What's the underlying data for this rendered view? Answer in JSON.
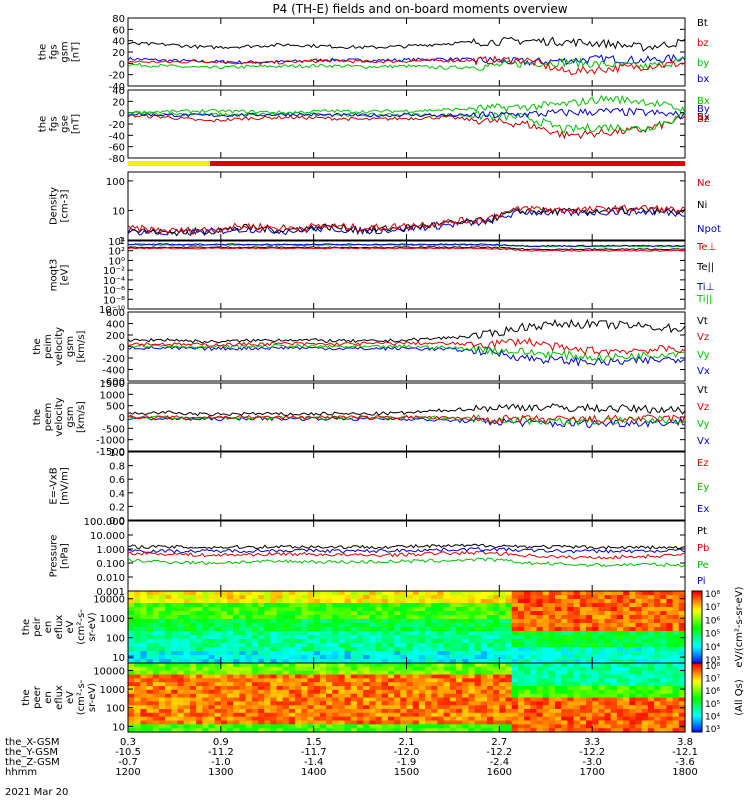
{
  "title": "P4 (TH-E) fields and on-board moments overview",
  "chart_data": [
    {
      "type": "line",
      "ylabel": [
        "the",
        "fgs",
        "gsm",
        "[nT]"
      ],
      "ylim": [
        -40,
        80
      ],
      "ticks": [
        "80",
        "60",
        "40",
        "20",
        "0",
        "-20",
        "-40"
      ],
      "tick_values": [
        80,
        60,
        40,
        20,
        0,
        -20,
        -40
      ],
      "legend": [
        {
          "label": "Bt",
          "color": "#000000"
        },
        {
          "label": "bz",
          "color": "#e00000"
        },
        {
          "label": "by",
          "color": "#00c000"
        },
        {
          "label": "bx",
          "color": "#0000d0"
        }
      ],
      "series": [
        {
          "name": "Bt",
          "values": [
            35,
            33,
            28,
            30,
            33,
            30,
            28,
            30,
            35,
            38,
            40,
            38,
            35,
            28,
            38
          ]
        },
        {
          "name": "bz",
          "values": [
            3,
            2,
            4,
            0,
            2,
            5,
            3,
            4,
            5,
            5,
            6,
            -15,
            -10,
            -5,
            0
          ]
        },
        {
          "name": "by",
          "values": [
            -2,
            -5,
            -8,
            -6,
            -5,
            -4,
            -6,
            -5,
            -8,
            -5,
            0,
            2,
            -2,
            -6,
            5
          ]
        },
        {
          "name": "bx",
          "values": [
            8,
            5,
            3,
            2,
            3,
            6,
            5,
            6,
            8,
            5,
            2,
            5,
            8,
            5,
            10
          ]
        }
      ]
    },
    {
      "type": "line",
      "ylabel": [
        "the",
        "fgs",
        "gse",
        "[nT]"
      ],
      "ylim": [
        -80,
        40
      ],
      "ticks": [
        "40",
        "20",
        "0",
        "-20",
        "-40",
        "-60",
        "-80"
      ],
      "tick_values": [
        40,
        20,
        0,
        -20,
        -40,
        -60,
        -80
      ],
      "legend": [
        {
          "label": "Bx",
          "color": "#00c000"
        },
        {
          "label": "By",
          "color": "#0000d0"
        },
        {
          "label": "Bx",
          "color": "#000000"
        },
        {
          "label": "Bz",
          "color": "#c00000"
        }
      ],
      "series": [
        {
          "name": "Bx",
          "values": [
            0,
            2,
            3,
            2,
            0,
            3,
            2,
            3,
            5,
            8,
            10,
            15,
            25,
            20,
            5
          ]
        },
        {
          "name": "By",
          "values": [
            -2,
            -4,
            -5,
            -4,
            -3,
            -4,
            -5,
            -4,
            -5,
            -5,
            -3,
            0,
            2,
            0,
            -5
          ]
        },
        {
          "name": "Bx",
          "values": [
            0,
            -2,
            -3,
            -4,
            -2,
            -3,
            -4,
            -3,
            -4,
            -6,
            -8,
            -30,
            -25,
            -28,
            -5
          ]
        },
        {
          "name": "Bz",
          "values": [
            -5,
            -8,
            -15,
            -10,
            -8,
            -10,
            -12,
            -10,
            -8,
            -15,
            -20,
            -40,
            -35,
            -30,
            -10
          ]
        }
      ]
    },
    {
      "type": "line",
      "ylabel": [
        "Density",
        "[cm-3]"
      ],
      "yscale": "log",
      "ylim": [
        1,
        200
      ],
      "ticks": [
        "100",
        "10",
        "1"
      ],
      "tick_values": [
        100,
        10,
        1
      ],
      "legend": [
        {
          "label": "Ne",
          "color": "#e00000"
        },
        {
          "label": "Ni",
          "color": "#000000"
        },
        {
          "label": "Npot",
          "color": "#0000d0"
        }
      ],
      "series": [
        {
          "name": "Ne",
          "values": [
            2.5,
            2.0,
            2.2,
            3,
            2.5,
            3,
            2.5,
            3,
            4,
            5,
            12,
            10,
            11,
            12,
            10
          ]
        },
        {
          "name": "Ni",
          "values": [
            2.2,
            1.8,
            2.0,
            2.6,
            2.2,
            2.8,
            2.2,
            2.6,
            3.5,
            4.5,
            10,
            9,
            10,
            10,
            9
          ]
        },
        {
          "name": "Npot",
          "values": [
            2.0,
            1.7,
            1.9,
            2.4,
            2.0,
            2.5,
            2.0,
            2.4,
            3.2,
            4,
            9,
            8,
            9,
            9,
            8
          ]
        }
      ]
    },
    {
      "type": "line",
      "ylabel": [
        "moqt3",
        "[eV]"
      ],
      "yscale": "log",
      "ylim": [
        1e-10,
        10000
      ],
      "ticks": [
        "10⁴",
        "10²",
        "10⁰",
        "10⁻²",
        "10⁻⁴",
        "10⁻⁶",
        "10⁻⁸",
        "10⁻¹⁰"
      ],
      "tick_values": [
        10000,
        100,
        1,
        0.01,
        0.0001,
        1e-06,
        1e-08,
        1e-10
      ],
      "legend": [
        {
          "label": "Te⊥",
          "color": "#e00000"
        },
        {
          "label": "Te||",
          "color": "#000000"
        },
        {
          "label": "Ti⊥",
          "color": "#0000d0"
        },
        {
          "label": "Ti||",
          "color": "#00c000"
        }
      ],
      "series": [
        {
          "name": "Te⊥",
          "values": [
            300,
            300,
            300,
            300,
            300,
            300,
            300,
            300,
            300,
            300,
            100,
            100,
            100,
            100,
            100
          ]
        },
        {
          "name": "Te||",
          "values": [
            500,
            500,
            500,
            500,
            500,
            500,
            500,
            500,
            500,
            500,
            200,
            200,
            200,
            200,
            200
          ]
        },
        {
          "name": "Ti⊥",
          "values": [
            2000,
            2000,
            2000,
            2000,
            2000,
            2000,
            2000,
            2000,
            2000,
            2000,
            1000,
            1000,
            1000,
            1000,
            1000
          ]
        },
        {
          "name": "Ti||",
          "values": [
            1500,
            1500,
            1500,
            1500,
            1500,
            1500,
            1500,
            1500,
            1500,
            1500,
            800,
            800,
            800,
            800,
            800
          ]
        }
      ]
    },
    {
      "type": "line",
      "ylabel": [
        "the",
        "peim",
        "velocity",
        "gsm",
        "[km/s]"
      ],
      "ylim": [
        -600,
        600
      ],
      "ticks": [
        "600",
        "400",
        "200",
        "0",
        "-200",
        "-400",
        "-600"
      ],
      "tick_values": [
        600,
        400,
        200,
        0,
        -200,
        -400,
        -600
      ],
      "legend": [
        {
          "label": "Vt",
          "color": "#000000"
        },
        {
          "label": "Vz",
          "color": "#e00000"
        },
        {
          "label": "Vy",
          "color": "#00c000"
        },
        {
          "label": "Vx",
          "color": "#0000d0"
        }
      ],
      "series": [
        {
          "name": "Vt",
          "values": [
            100,
            120,
            80,
            100,
            120,
            100,
            90,
            110,
            150,
            200,
            350,
            400,
            380,
            350,
            300
          ]
        },
        {
          "name": "Vz",
          "values": [
            50,
            40,
            30,
            40,
            50,
            40,
            50,
            60,
            50,
            40,
            100,
            -50,
            -80,
            -60,
            -40
          ]
        },
        {
          "name": "Vy",
          "values": [
            20,
            10,
            -10,
            0,
            10,
            0,
            -10,
            0,
            -20,
            -50,
            -100,
            -150,
            -200,
            -150,
            -100
          ]
        },
        {
          "name": "Vx",
          "values": [
            -20,
            -30,
            -40,
            -30,
            -20,
            -30,
            -40,
            -30,
            -50,
            -80,
            -200,
            -250,
            -280,
            -250,
            -200
          ]
        }
      ]
    },
    {
      "type": "line",
      "ylabel": [
        "the",
        "peem",
        "velocity",
        "gsm",
        "[km/s]"
      ],
      "ylim": [
        -1500,
        1500
      ],
      "ticks": [
        "1500",
        "1000",
        "500",
        "0",
        "-500",
        "-1000",
        "-1500"
      ],
      "tick_values": [
        1500,
        1000,
        500,
        0,
        -500,
        -1000,
        -1500
      ],
      "legend": [
        {
          "label": "Vt",
          "color": "#000000"
        },
        {
          "label": "Vz",
          "color": "#e00000"
        },
        {
          "label": "Vy",
          "color": "#00c000"
        },
        {
          "label": "Vx",
          "color": "#0000d0"
        }
      ],
      "series": [
        {
          "name": "Vt",
          "values": [
            150,
            200,
            100,
            150,
            120,
            150,
            130,
            180,
            300,
            400,
            450,
            400,
            380,
            350,
            300
          ]
        },
        {
          "name": "Vz",
          "values": [
            0,
            -20,
            -10,
            0,
            -10,
            0,
            -20,
            0,
            -50,
            -100,
            -100,
            -120,
            -100,
            -80,
            -60
          ]
        },
        {
          "name": "Vy",
          "values": [
            -20,
            -30,
            -40,
            -30,
            -40,
            -30,
            -40,
            -30,
            -50,
            -80,
            -150,
            -200,
            -180,
            -150,
            -120
          ]
        },
        {
          "name": "Vx",
          "values": [
            -50,
            -80,
            -100,
            -60,
            -80,
            -70,
            -90,
            -80,
            -150,
            -200,
            -250,
            -300,
            -280,
            -250,
            -220
          ]
        }
      ]
    },
    {
      "type": "line",
      "ylabel": [
        "E=-VxB",
        "[mV/m]"
      ],
      "ylim": [
        0,
        1
      ],
      "ticks": [
        "1.0",
        "0.8",
        "0.6",
        "0.4",
        "0.2",
        "0.0"
      ],
      "tick_values": [
        1,
        0.8,
        0.6,
        0.4,
        0.2,
        0
      ],
      "legend": [
        {
          "label": "Ez",
          "color": "#e00000"
        },
        {
          "label": "Ey",
          "color": "#00c000"
        },
        {
          "label": "Ex",
          "color": "#0000d0"
        }
      ],
      "series": []
    },
    {
      "type": "line",
      "ylabel": [
        "Pressure",
        "[nPa]"
      ],
      "yscale": "log",
      "ylim": [
        0.001,
        100
      ],
      "ticks": [
        "100.000",
        "10.000",
        "1.000",
        "0.100",
        "0.010",
        "0.001"
      ],
      "tick_values": [
        100,
        10,
        1,
        0.1,
        0.01,
        0.001
      ],
      "legend": [
        {
          "label": "Pt",
          "color": "#000000"
        },
        {
          "label": "Pb",
          "color": "#e00000"
        },
        {
          "label": "Pe",
          "color": "#00c000"
        },
        {
          "label": "Pi",
          "color": "#0000d0"
        }
      ],
      "series": [
        {
          "name": "Pt",
          "values": [
            1.5,
            1.4,
            1.3,
            1.4,
            1.5,
            1.4,
            1.4,
            1.5,
            1.6,
            1.8,
            1.5,
            1.4,
            1.3,
            1.3,
            1.2
          ]
        },
        {
          "name": "Pb",
          "values": [
            0.5,
            0.45,
            0.35,
            0.4,
            0.45,
            0.4,
            0.35,
            0.4,
            0.5,
            0.55,
            0.35,
            0.25,
            0.25,
            0.3,
            0.4
          ]
        },
        {
          "name": "Pe",
          "values": [
            0.15,
            0.12,
            0.1,
            0.12,
            0.13,
            0.12,
            0.12,
            0.13,
            0.15,
            0.18,
            0.1,
            0.08,
            0.07,
            0.08,
            0.07
          ]
        },
        {
          "name": "Pi",
          "values": [
            0.8,
            0.7,
            0.7,
            0.75,
            0.8,
            0.75,
            0.7,
            0.8,
            0.9,
            1.0,
            0.8,
            0.7,
            0.7,
            0.7,
            0.8
          ]
        }
      ]
    },
    {
      "type": "heatmap",
      "ylabel": [
        "the",
        "peir",
        "en",
        "eflux",
        "eV",
        "(cm²-s-",
        "sr-eV)"
      ],
      "yscale": "log",
      "ylim": [
        5,
        25000
      ],
      "ticks": [
        "10000",
        "1000",
        "100",
        "10"
      ],
      "tick_values": [
        10000,
        1000,
        100,
        10
      ],
      "zlabel": "eV/(cm²-s-sr-eV)",
      "zticks": [
        "10⁸",
        "10⁷",
        "10⁶",
        "10⁵",
        "10⁴",
        "10³"
      ]
    },
    {
      "type": "heatmap",
      "ylabel": [
        "the",
        "peer",
        "en",
        "eflux",
        "eV",
        "(cm²-s-",
        "sr-eV)"
      ],
      "yscale": "log",
      "ylim": [
        5,
        25000
      ],
      "ticks": [
        "10000",
        "1000",
        "100",
        "10"
      ],
      "tick_values": [
        10000,
        1000,
        100,
        10
      ],
      "zlabel": "(All Qs)",
      "zticks": [
        "10⁸",
        "10⁷",
        "10⁶",
        "10⁵",
        "10⁴",
        "10³"
      ]
    }
  ],
  "mode_bar": [
    {
      "from": "12:00",
      "to": "12:53",
      "color": "#f0f000"
    },
    {
      "from": "12:53",
      "to": "18:00",
      "color": "#e00000"
    }
  ],
  "x_axis": {
    "row_labels": [
      "the_X-GSM",
      "the_Y-GSM",
      "the_Z-GSM",
      "hhmm"
    ],
    "date": "2021 Mar 20",
    "ticks": [
      {
        "x": "0.3",
        "y": "-10.5",
        "z": "-0.7",
        "time": "1200"
      },
      {
        "x": "0.9",
        "y": "-11.2",
        "z": "-1.0",
        "time": "1300"
      },
      {
        "x": "1.5",
        "y": "-11.7",
        "z": "-1.4",
        "time": "1400"
      },
      {
        "x": "2.1",
        "y": "-12.0",
        "z": "-1.9",
        "time": "1500"
      },
      {
        "x": "2.7",
        "y": "-12.2",
        "z": "-2.4",
        "time": "1600"
      },
      {
        "x": "3.3",
        "y": "-12.2",
        "z": "-3.0",
        "time": "1700"
      },
      {
        "x": "3.8",
        "y": "-12.1",
        "z": "-3.6",
        "time": "1800"
      }
    ]
  }
}
